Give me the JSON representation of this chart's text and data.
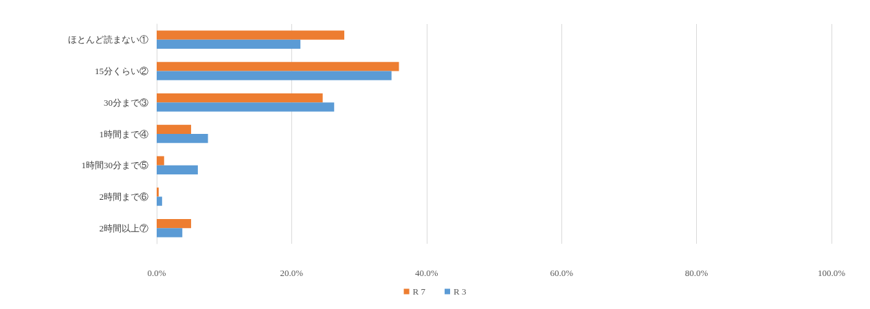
{
  "chart_data": {
    "type": "bar",
    "orientation": "horizontal",
    "categories": [
      "ほとんど読まない①",
      "15分くらい②",
      "30分まで③",
      "1時間まで④",
      "1時間30分まで⑤",
      "2時間まで⑥",
      "2時間以上⑦"
    ],
    "series": [
      {
        "name": "R 7",
        "color": "#ed7d31",
        "values": [
          27.8,
          35.9,
          24.6,
          5.1,
          1.1,
          0.3,
          5.1
        ]
      },
      {
        "name": "R 3",
        "color": "#5b9bd5",
        "values": [
          21.3,
          34.8,
          26.3,
          7.6,
          6.1,
          0.8,
          3.8
        ]
      }
    ],
    "xlim": [
      0,
      100
    ],
    "xticks": [
      {
        "value": 0,
        "label": "0.0%"
      },
      {
        "value": 20,
        "label": "20.0%"
      },
      {
        "value": 40,
        "label": "40.0%"
      },
      {
        "value": 60,
        "label": "60.0%"
      },
      {
        "value": 80,
        "label": "80.0%"
      },
      {
        "value": 100,
        "label": "100.0%"
      }
    ],
    "grid": "x",
    "legend": "bottom"
  }
}
